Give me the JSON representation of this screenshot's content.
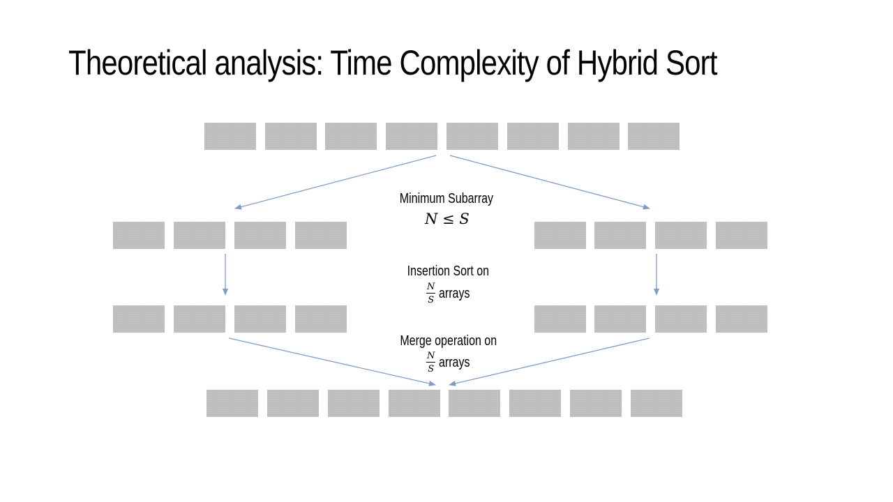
{
  "slide": {
    "title": "Theoretical analysis: Time Complexity of Hybrid Sort"
  },
  "labels": {
    "min_subarray": "Minimum Subarray",
    "min_subarray_condition": "N ≤ S",
    "insertion": "Insertion Sort on",
    "merge": "Merge operation on",
    "arrays_word": "arrays",
    "fraction_num": "N",
    "fraction_den": "S"
  },
  "colors": {
    "box_fill": "#bdbdbd",
    "arrow": "#7f9cc9"
  }
}
